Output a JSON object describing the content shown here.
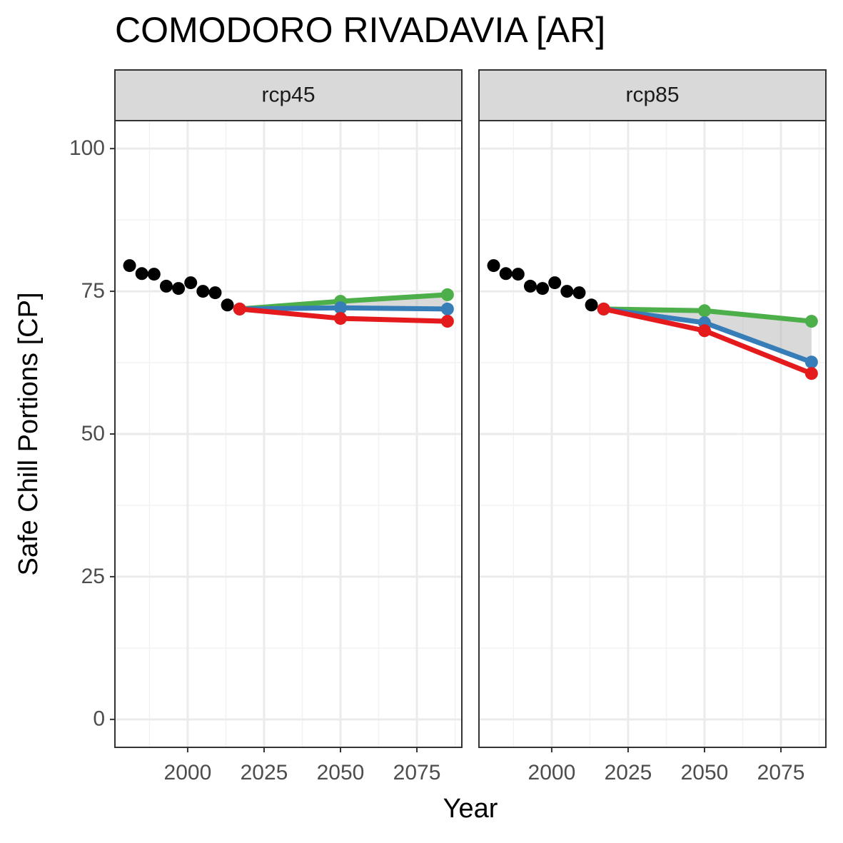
{
  "title": "COMODORO RIVADAVIA [AR]",
  "xlabel": "Year",
  "ylabel": "Safe Chill Portions [CP]",
  "chart_data": [
    {
      "type": "line",
      "panel": "rcp45",
      "xlim": [
        1976.2,
        2089.7
      ],
      "ylim": [
        -4.9,
        104.9
      ],
      "xticks": [
        2000,
        2025,
        2050,
        2075
      ],
      "yticks": [
        0,
        25,
        50,
        75,
        100
      ],
      "grid": true,
      "series": [
        {
          "color": "#4daf4a",
          "x": [
            2017,
            2050,
            2085
          ],
          "values": [
            71.9,
            73.25,
            74.4
          ]
        },
        {
          "color": "#377eb8",
          "x": [
            2017,
            2050,
            2085
          ],
          "values": [
            71.9,
            72.1,
            71.9
          ]
        },
        {
          "color": "#e41a1c",
          "x": [
            2017,
            2050,
            2085
          ],
          "values": [
            71.9,
            70.25,
            69.75
          ]
        },
        {
          "color": "#000000",
          "x": [
            1981,
            1985,
            1989,
            1993,
            1997,
            2001,
            2005,
            2009,
            2013
          ],
          "values": [
            79.5,
            78.1,
            78,
            75.9,
            75.5,
            76.5,
            75,
            74.75,
            72.6
          ]
        }
      ]
    },
    {
      "type": "line",
      "panel": "rcp85",
      "xlim": [
        1976.2,
        2089.7
      ],
      "ylim": [
        -4.9,
        104.9
      ],
      "xticks": [
        2000,
        2025,
        2050,
        2075
      ],
      "yticks": [
        0,
        25,
        50,
        75,
        100
      ],
      "grid": true,
      "series": [
        {
          "color": "#4daf4a",
          "x": [
            2017,
            2050,
            2085
          ],
          "values": [
            71.9,
            71.6,
            69.75
          ]
        },
        {
          "color": "#377eb8",
          "x": [
            2017,
            2050,
            2085
          ],
          "values": [
            71.9,
            69.5,
            62.6
          ]
        },
        {
          "color": "#e41a1c",
          "x": [
            2017,
            2050,
            2085
          ],
          "values": [
            71.9,
            68.1,
            60.6
          ]
        },
        {
          "color": "#000000",
          "x": [
            1981,
            1985,
            1989,
            1993,
            1997,
            2001,
            2005,
            2009,
            2013
          ],
          "values": [
            79.5,
            78.1,
            78,
            75.9,
            75.5,
            76.5,
            75,
            74.75,
            72.6
          ]
        }
      ]
    }
  ]
}
